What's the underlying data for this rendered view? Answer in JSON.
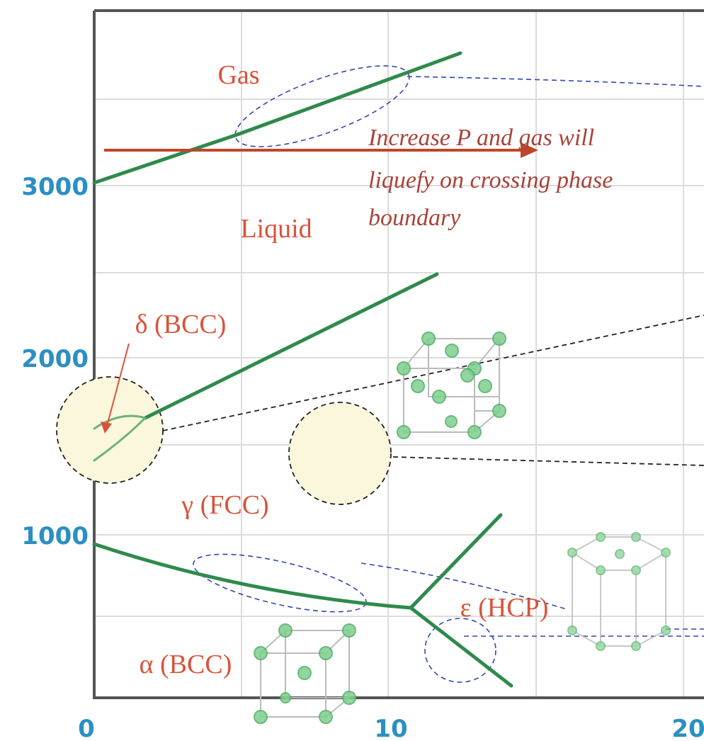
{
  "axes": {
    "yticks": [
      "3000",
      "2000",
      "1000"
    ],
    "xticks": [
      "0",
      "10",
      "20"
    ]
  },
  "regions": {
    "gas": "Gas",
    "liquid": "Liquid",
    "delta": "δ (BCC)",
    "gamma": "γ (FCC)",
    "epsilon": "ε (HCP)",
    "alpha": "α (BCC)"
  },
  "annotation": {
    "lines": [
      "Increase P and gas will",
      "liquefy on crossing phase",
      "boundary"
    ]
  }
}
